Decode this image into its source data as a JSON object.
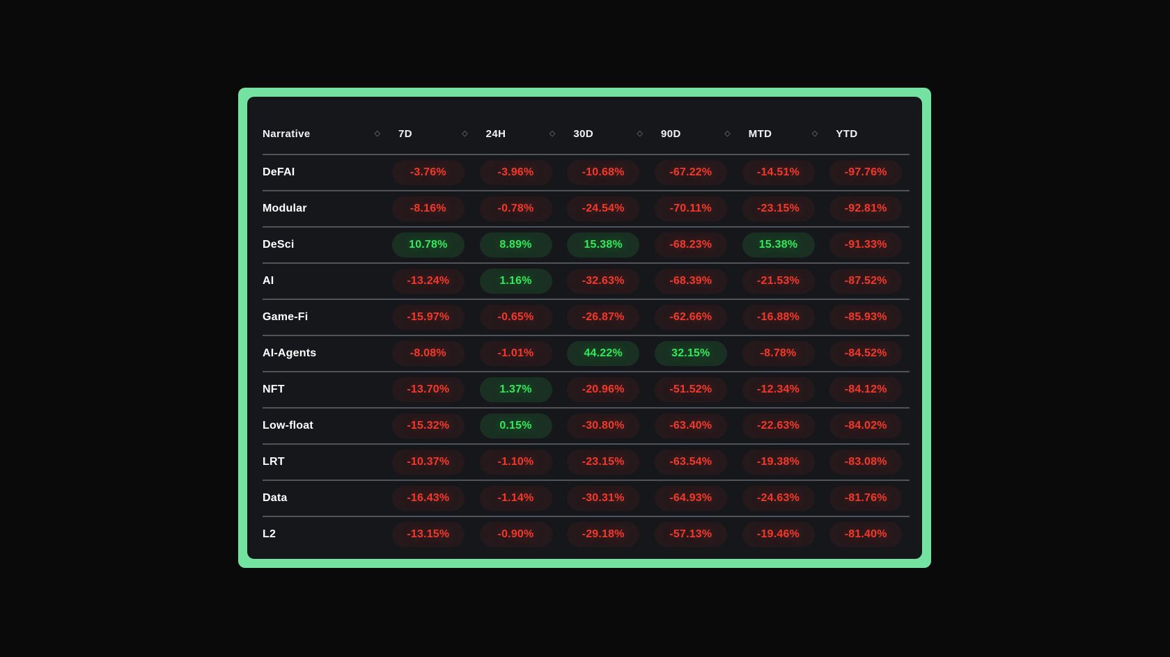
{
  "page": {
    "background": "#0a0a0b"
  },
  "card": {
    "accent_color": "#74e3a1",
    "background": "#16171b",
    "separator_color": "#50545a"
  },
  "icons": {
    "sort_glyph": "◇"
  },
  "colors": {
    "positive": "#35e85a",
    "negative": "#f2392b"
  },
  "table": {
    "columns": [
      {
        "label": "Narrative",
        "sortable": true
      },
      {
        "label": "7D",
        "sortable": true
      },
      {
        "label": "24H",
        "sortable": true
      },
      {
        "label": "30D",
        "sortable": true
      },
      {
        "label": "90D",
        "sortable": true
      },
      {
        "label": "MTD",
        "sortable": true
      },
      {
        "label": "YTD",
        "sortable": false
      }
    ],
    "rows": [
      {
        "narrative": "DeFAI",
        "values": [
          "-3.76%",
          "-3.96%",
          "-10.68%",
          "-67.22%",
          "-14.51%",
          "-97.76%"
        ]
      },
      {
        "narrative": "Modular",
        "values": [
          "-8.16%",
          "-0.78%",
          "-24.54%",
          "-70.11%",
          "-23.15%",
          "-92.81%"
        ]
      },
      {
        "narrative": "DeSci",
        "values": [
          "10.78%",
          "8.89%",
          "15.38%",
          "-68.23%",
          "15.38%",
          "-91.33%"
        ]
      },
      {
        "narrative": "AI",
        "values": [
          "-13.24%",
          "1.16%",
          "-32.63%",
          "-68.39%",
          "-21.53%",
          "-87.52%"
        ]
      },
      {
        "narrative": "Game-Fi",
        "values": [
          "-15.97%",
          "-0.65%",
          "-26.87%",
          "-62.66%",
          "-16.88%",
          "-85.93%"
        ]
      },
      {
        "narrative": "AI-Agents",
        "values": [
          "-8.08%",
          "-1.01%",
          "44.22%",
          "32.15%",
          "-8.78%",
          "-84.52%"
        ]
      },
      {
        "narrative": "NFT",
        "values": [
          "-13.70%",
          "1.37%",
          "-20.96%",
          "-51.52%",
          "-12.34%",
          "-84.12%"
        ]
      },
      {
        "narrative": "Low-float",
        "values": [
          "-15.32%",
          "0.15%",
          "-30.80%",
          "-63.40%",
          "-22.63%",
          "-84.02%"
        ]
      },
      {
        "narrative": "LRT",
        "values": [
          "-10.37%",
          "-1.10%",
          "-23.15%",
          "-63.54%",
          "-19.38%",
          "-83.08%"
        ]
      },
      {
        "narrative": "Data",
        "values": [
          "-16.43%",
          "-1.14%",
          "-30.31%",
          "-64.93%",
          "-24.63%",
          "-81.76%"
        ]
      },
      {
        "narrative": "L2",
        "values": [
          "-13.15%",
          "-0.90%",
          "-29.18%",
          "-57.13%",
          "-19.46%",
          "-81.40%"
        ]
      }
    ]
  }
}
